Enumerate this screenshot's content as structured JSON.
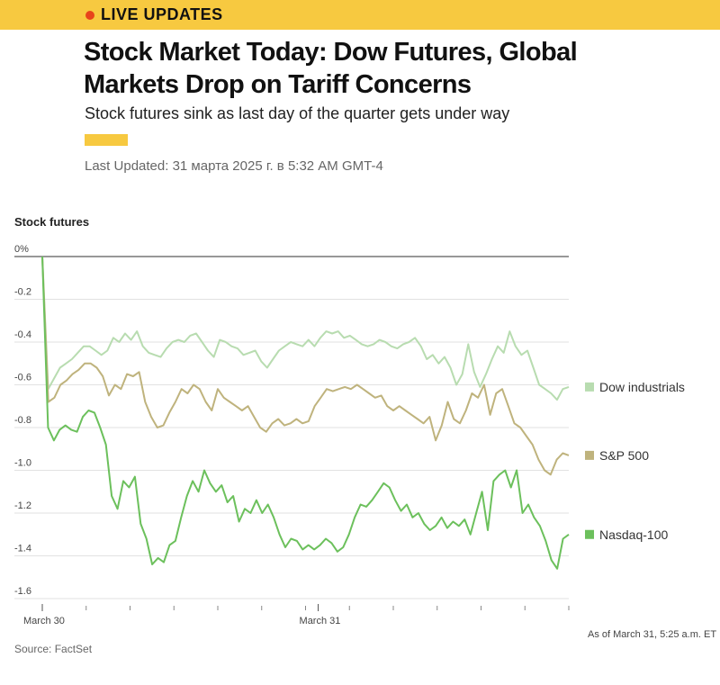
{
  "banner": {
    "label": "LIVE UPDATES",
    "accent_color": "#f7c940",
    "dot_color": "#e8431b"
  },
  "article": {
    "headline": "Stock Market Today: Dow Futures, Global Markets Drop on Tariff Concerns",
    "subheadline": "Stock futures sink as last day of the quarter gets under way",
    "last_updated": "Last Updated: 31 марта 2025 г. в 5:32 AM GMT-4"
  },
  "chart_title": "Stock futures",
  "source": "Source: FactSet",
  "as_of": "As of March 31, 5:25 a.m. ET",
  "chart_data": {
    "type": "line",
    "title": "Stock futures",
    "ylim": [
      -1.6,
      0
    ],
    "yticks": [
      0,
      -0.2,
      -0.4,
      -0.6,
      -0.8,
      -1.0,
      -1.2,
      -1.4,
      -1.6
    ],
    "ytick_labels": [
      "0%",
      "-0.2",
      "-0.4",
      "-0.6",
      "-0.8",
      "-1.0",
      "-1.2",
      "-1.4",
      "-1.6"
    ],
    "x_labels": [
      {
        "label": "March 30",
        "pos": 0.0
      },
      {
        "label": "March 31",
        "pos": 0.524
      }
    ],
    "grid": true,
    "legend_placement": "right",
    "series": [
      {
        "name": "Dow industrials",
        "color": "#b8dcb0",
        "values": [
          0,
          -0.62,
          -0.57,
          -0.52,
          -0.5,
          -0.48,
          -0.45,
          -0.42,
          -0.42,
          -0.44,
          -0.46,
          -0.44,
          -0.38,
          -0.4,
          -0.36,
          -0.39,
          -0.35,
          -0.42,
          -0.45,
          -0.46,
          -0.47,
          -0.43,
          -0.4,
          -0.39,
          -0.4,
          -0.37,
          -0.36,
          -0.4,
          -0.44,
          -0.47,
          -0.39,
          -0.4,
          -0.42,
          -0.43,
          -0.46,
          -0.45,
          -0.44,
          -0.49,
          -0.52,
          -0.48,
          -0.44,
          -0.42,
          -0.4,
          -0.41,
          -0.42,
          -0.39,
          -0.42,
          -0.38,
          -0.35,
          -0.36,
          -0.35,
          -0.38,
          -0.37,
          -0.39,
          -0.41,
          -0.42,
          -0.41,
          -0.39,
          -0.4,
          -0.42,
          -0.43,
          -0.41,
          -0.4,
          -0.38,
          -0.42,
          -0.48,
          -0.46,
          -0.5,
          -0.47,
          -0.52,
          -0.6,
          -0.55,
          -0.41,
          -0.54,
          -0.61,
          -0.55,
          -0.48,
          -0.42,
          -0.45,
          -0.35,
          -0.42,
          -0.46,
          -0.44,
          -0.52,
          -0.6,
          -0.62,
          -0.64,
          -0.67,
          -0.62,
          -0.61
        ]
      },
      {
        "name": "S&P 500",
        "color": "#bfb37d",
        "values": [
          0,
          -0.68,
          -0.66,
          -0.6,
          -0.58,
          -0.55,
          -0.53,
          -0.5,
          -0.5,
          -0.52,
          -0.56,
          -0.65,
          -0.6,
          -0.62,
          -0.55,
          -0.56,
          -0.54,
          -0.68,
          -0.75,
          -0.8,
          -0.79,
          -0.73,
          -0.68,
          -0.62,
          -0.64,
          -0.6,
          -0.62,
          -0.68,
          -0.72,
          -0.62,
          -0.66,
          -0.68,
          -0.7,
          -0.72,
          -0.7,
          -0.75,
          -0.8,
          -0.82,
          -0.78,
          -0.76,
          -0.79,
          -0.78,
          -0.76,
          -0.78,
          -0.77,
          -0.7,
          -0.66,
          -0.62,
          -0.63,
          -0.62,
          -0.61,
          -0.62,
          -0.6,
          -0.62,
          -0.64,
          -0.66,
          -0.65,
          -0.7,
          -0.72,
          -0.7,
          -0.72,
          -0.74,
          -0.76,
          -0.78,
          -0.75,
          -0.86,
          -0.79,
          -0.68,
          -0.76,
          -0.78,
          -0.72,
          -0.64,
          -0.66,
          -0.6,
          -0.74,
          -0.64,
          -0.62,
          -0.7,
          -0.78,
          -0.8,
          -0.84,
          -0.88,
          -0.95,
          -1.0,
          -1.02,
          -0.95,
          -0.92,
          -0.93
        ]
      },
      {
        "name": "Nasdaq-100",
        "color": "#6cc05c",
        "values": [
          0,
          -0.8,
          -0.86,
          -0.81,
          -0.79,
          -0.81,
          -0.82,
          -0.75,
          -0.72,
          -0.73,
          -0.8,
          -0.88,
          -1.12,
          -1.18,
          -1.05,
          -1.08,
          -1.03,
          -1.25,
          -1.32,
          -1.44,
          -1.41,
          -1.43,
          -1.35,
          -1.33,
          -1.22,
          -1.12,
          -1.05,
          -1.1,
          -1.0,
          -1.06,
          -1.1,
          -1.07,
          -1.15,
          -1.12,
          -1.24,
          -1.18,
          -1.2,
          -1.14,
          -1.2,
          -1.16,
          -1.22,
          -1.3,
          -1.36,
          -1.32,
          -1.33,
          -1.37,
          -1.35,
          -1.37,
          -1.35,
          -1.32,
          -1.34,
          -1.38,
          -1.36,
          -1.3,
          -1.22,
          -1.16,
          -1.17,
          -1.14,
          -1.1,
          -1.06,
          -1.08,
          -1.14,
          -1.19,
          -1.16,
          -1.22,
          -1.2,
          -1.25,
          -1.28,
          -1.26,
          -1.22,
          -1.27,
          -1.24,
          -1.26,
          -1.23,
          -1.3,
          -1.2,
          -1.1,
          -1.28,
          -1.05,
          -1.02,
          -1.0,
          -1.08,
          -1.0,
          -1.2,
          -1.16,
          -1.22,
          -1.26,
          -1.33,
          -1.42,
          -1.46,
          -1.32,
          -1.3
        ]
      }
    ]
  }
}
